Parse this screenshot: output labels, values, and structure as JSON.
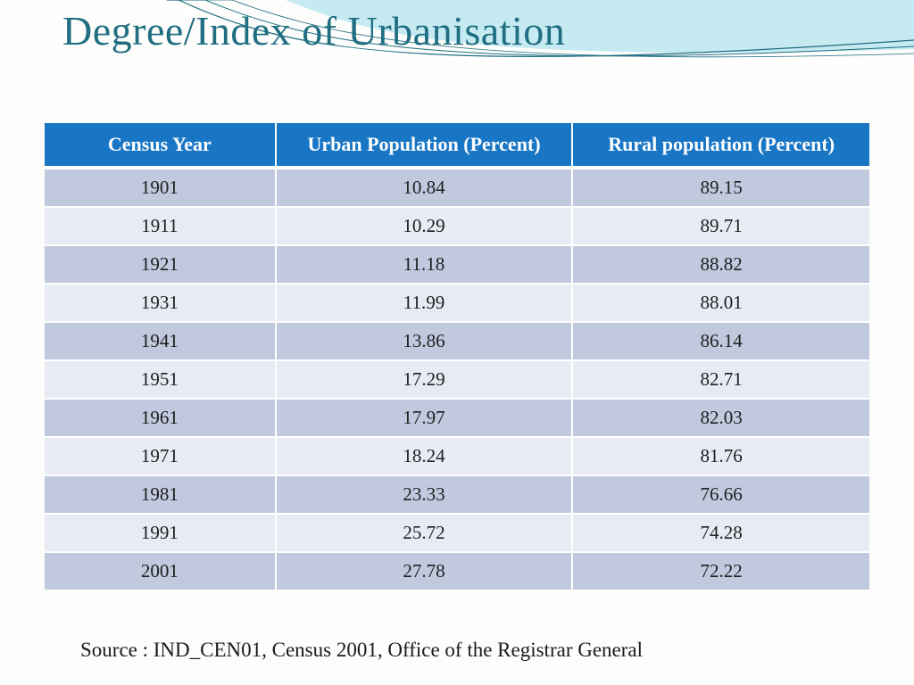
{
  "slide": {
    "title": "Degree/Index of Urbanisation",
    "title_color": "#1f6e82",
    "title_fontsize": 46,
    "background_color": "#fdfdfb",
    "wave_colors": [
      "#bfe8ef",
      "#6fc9d8",
      "#1f6e82"
    ]
  },
  "table": {
    "type": "table",
    "header_bg": "#1976c5",
    "header_text_color": "#ffffff",
    "header_fontsize": 22,
    "cell_fontsize": 21,
    "row_odd_bg": "#c0c9de",
    "row_even_bg": "#e6ebf4",
    "cell_text_color": "#202020",
    "border_color": "#ffffff",
    "columns": [
      {
        "label": "Census Year",
        "width_pct": 28
      },
      {
        "label": "Urban Population (Percent)",
        "width_pct": 36
      },
      {
        "label": "Rural population (Percent)",
        "width_pct": 36
      }
    ],
    "rows": [
      [
        "1901",
        "10.84",
        "89.15"
      ],
      [
        "1911",
        "10.29",
        "89.71"
      ],
      [
        "1921",
        "11.18",
        "88.82"
      ],
      [
        "1931",
        "11.99",
        "88.01"
      ],
      [
        "1941",
        "13.86",
        "86.14"
      ],
      [
        "1951",
        "17.29",
        "82.71"
      ],
      [
        "1961",
        "17.97",
        "82.03"
      ],
      [
        "1971",
        "18.24",
        "81.76"
      ],
      [
        "1981",
        "23.33",
        "76.66"
      ],
      [
        "1991",
        "25.72",
        "74.28"
      ],
      [
        "2001",
        "27.78",
        "72.22"
      ]
    ]
  },
  "source": {
    "text": "Source : IND_CEN01, Census 2001, Office of the Registrar General",
    "fontsize": 23,
    "color": "#1a1a1a"
  }
}
